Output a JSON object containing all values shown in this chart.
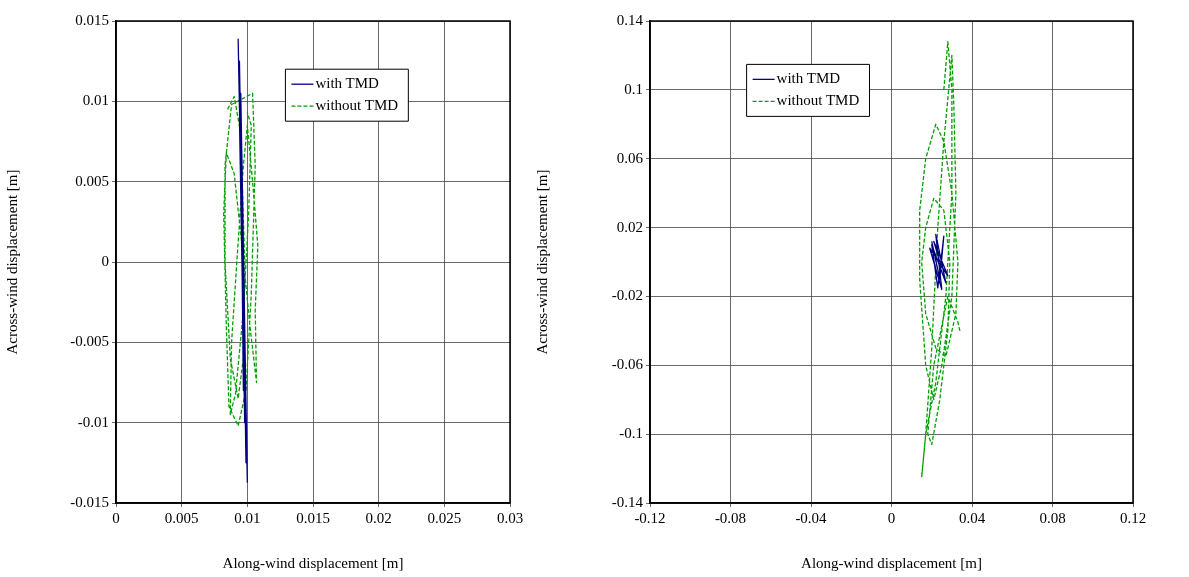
{
  "chart_data": [
    {
      "type": "line",
      "xlabel": "Along-wind displacement [m]",
      "ylabel": "Across-wind displacement [m]",
      "xlim": [
        0,
        0.03
      ],
      "xticks": [
        0,
        0.005,
        0.01,
        0.015,
        0.02,
        0.025,
        0.03
      ],
      "ylim": [
        -0.015,
        0.015
      ],
      "yticks": [
        -0.015,
        -0.01,
        -0.005,
        0,
        0.005,
        0.01,
        0.015
      ],
      "grid": true,
      "legend": "top right",
      "marker": "none",
      "series": [
        {
          "name": "with TMD",
          "color": "#000080",
          "line_style": "solid",
          "x": [
            0.0093,
            0.0099,
            0.0094,
            0.01,
            0.0095,
            0.0098,
            0.0094,
            0.0099,
            0.0095,
            0.0097,
            0.0096,
            0.0099,
            0.0094,
            0.0098
          ],
          "values": [
            0.0139,
            -0.012,
            0.012,
            -0.0137,
            0.0105,
            -0.01,
            0.009,
            -0.011,
            0.008,
            -0.008,
            0.006,
            -0.0125,
            0.0125,
            -0.009
          ]
        },
        {
          "name": "without TMD",
          "color": "#00a000",
          "line_style": "dashed",
          "x": [
            0.0085,
            0.009,
            0.0095,
            0.0098,
            0.0097,
            0.0093,
            0.0087,
            0.0083,
            0.0083,
            0.0088,
            0.0104,
            0.0106,
            0.0103,
            0.0099,
            0.0093,
            0.0086,
            0.0084,
            0.0082,
            0.0084,
            0.009,
            0.0096,
            0.0102,
            0.0107,
            0.0106,
            0.0108,
            0.0104,
            0.01,
            0.0097,
            0.0092,
            0.0088,
            0.0087,
            0.0091,
            0.0097,
            0.0101,
            0.0103,
            0.01
          ],
          "values": [
            0.0095,
            0.0103,
            0.008,
            0.0,
            -0.006,
            -0.0085,
            -0.006,
            0.0,
            0.006,
            0.0098,
            0.0105,
            0.006,
            -0.002,
            -0.008,
            -0.0102,
            -0.009,
            -0.004,
            0.003,
            0.0068,
            0.0055,
            0.001,
            -0.004,
            -0.0075,
            -0.003,
            0.001,
            0.005,
            0.0085,
            0.006,
            0.0,
            -0.005,
            -0.0095,
            -0.0082,
            -0.003,
            0.003,
            0.0085,
            0.0093
          ]
        }
      ]
    },
    {
      "type": "line",
      "xlabel": "Along-wind displacement [m]",
      "ylabel": "Across-wind displacement [m]",
      "xlim": [
        -0.12,
        0.12
      ],
      "xticks": [
        -0.12,
        -0.08,
        -0.04,
        0,
        0.04,
        0.08,
        0.12
      ],
      "ylim": [
        -0.14,
        0.14
      ],
      "yticks": [
        -0.14,
        -0.1,
        -0.06,
        -0.02,
        0.02,
        0.06,
        0.1,
        0.14
      ],
      "grid": true,
      "legend": "top left",
      "marker": "none",
      "series": [
        {
          "name": "with TMD",
          "color": "#000080",
          "line_style": "solid",
          "x": [
            0.02,
            0.024,
            0.026,
            0.023,
            0.02,
            0.027,
            0.022,
            0.025,
            0.019,
            0.028,
            0.021,
            0.024
          ],
          "values": [
            0.012,
            -0.01,
            0.015,
            -0.015,
            0.01,
            -0.012,
            0.016,
            -0.016,
            0.008,
            -0.008,
            0.012,
            0.0
          ]
        },
        {
          "name": "without TMD",
          "color": "#00a000",
          "line_style": "dashed",
          "x": [
            0.026,
            0.028,
            0.03,
            0.03,
            0.027,
            0.022,
            0.017,
            0.015,
            0.017,
            0.02,
            0.023,
            0.026,
            0.03,
            0.031,
            0.032,
            0.03,
            0.025,
            0.021,
            0.017,
            0.014,
            0.014,
            0.017,
            0.022,
            0.026,
            0.03,
            0.033,
            0.032,
            0.027,
            0.022,
            0.017,
            0.015,
            0.017,
            0.021,
            0.026,
            0.029,
            0.028,
            0.024,
            0.02,
            0.018,
            0.021,
            0.028,
            0.033,
            0.034
          ],
          "values": [
            0.1,
            0.128,
            0.1,
            0.04,
            -0.02,
            -0.07,
            -0.1,
            -0.125,
            -0.1,
            -0.05,
            0.02,
            0.07,
            0.12,
            0.09,
            0.04,
            -0.02,
            -0.06,
            -0.08,
            -0.06,
            -0.01,
            0.03,
            0.06,
            0.08,
            0.07,
            0.04,
            0.0,
            -0.03,
            -0.055,
            -0.05,
            -0.03,
            0.0,
            0.02,
            0.037,
            0.03,
            0.0,
            -0.04,
            -0.08,
            -0.106,
            -0.1,
            -0.06,
            -0.02,
            -0.035,
            -0.04
          ]
        }
      ]
    }
  ]
}
